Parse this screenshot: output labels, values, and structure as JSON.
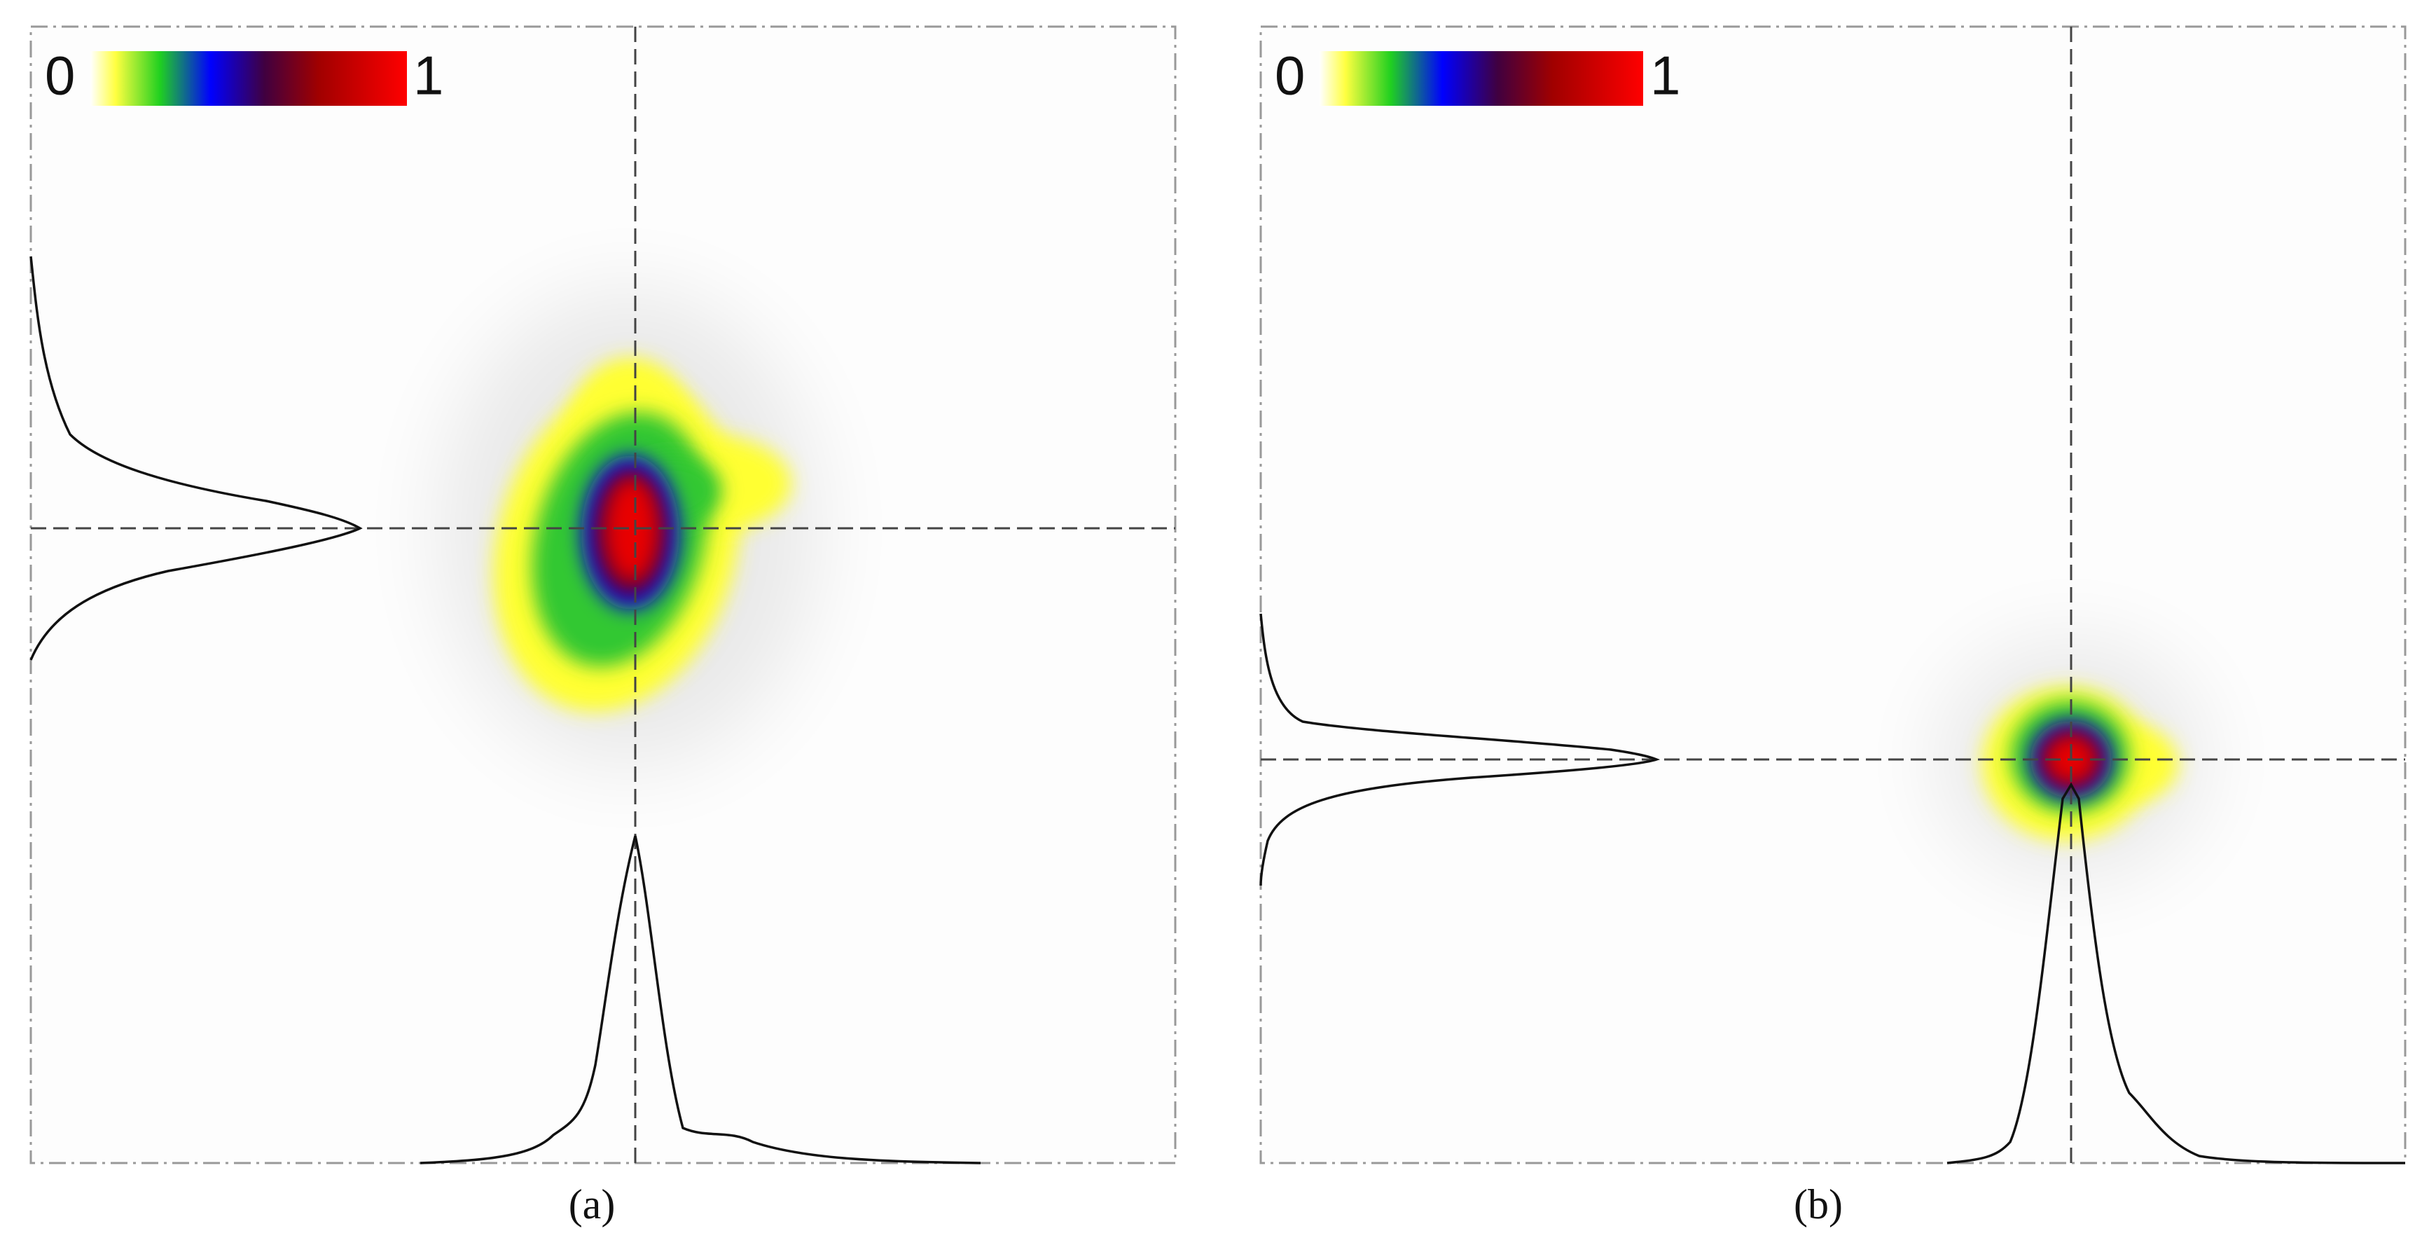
{
  "panels": [
    {
      "colorbar": {
        "min_label": "0",
        "max_label": "1"
      },
      "caption": "(a)"
    },
    {
      "colorbar": {
        "min_label": "0",
        "max_label": "1"
      },
      "caption": "(b)"
    }
  ]
}
